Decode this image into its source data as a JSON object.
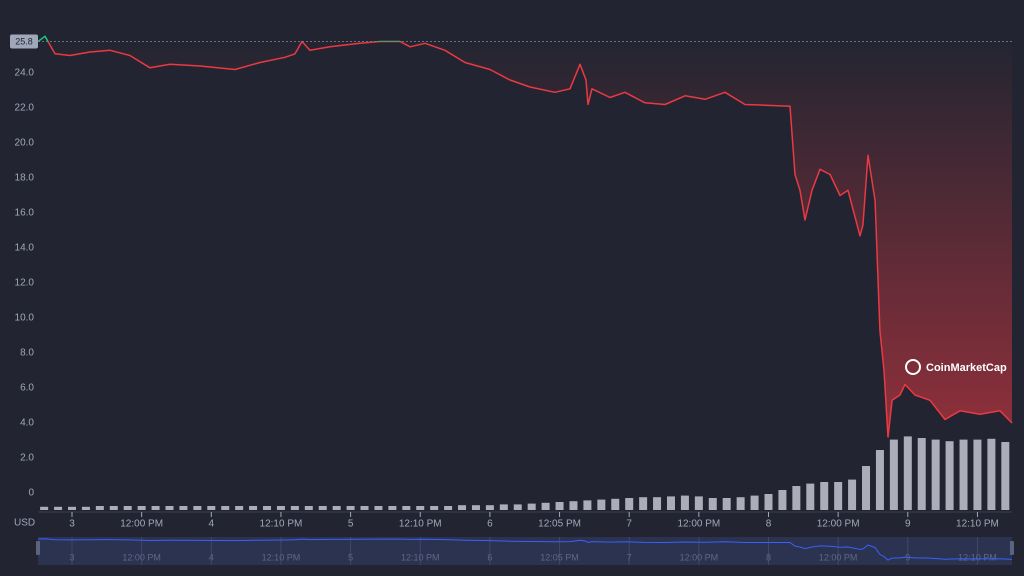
{
  "chart_data": {
    "type": "line",
    "currency_label": "USD",
    "watermark": "CoinMarketCap",
    "reference_price": 25.8,
    "ylim": [
      -1,
      27
    ],
    "yticks": [
      0,
      {
        "value": 2,
        "label": "2.0"
      },
      {
        "value": 4,
        "label": "4.0"
      },
      {
        "value": 6,
        "label": "6.0"
      },
      {
        "value": 8,
        "label": "8.0"
      },
      {
        "value": 10,
        "label": "10.0"
      },
      {
        "value": 12,
        "label": "12.0"
      },
      {
        "value": 14,
        "label": "14.0"
      },
      {
        "value": 16,
        "label": "16.0"
      },
      {
        "value": 18,
        "label": "18.0"
      },
      {
        "value": 20,
        "label": "20.0"
      },
      {
        "value": 22,
        "label": "22.0"
      },
      {
        "value": 24,
        "label": "24.0"
      }
    ],
    "xlim": [
      2.756,
      9.748
    ],
    "xticks": [
      3,
      {
        "value": 3.5,
        "label": "12:00 PM"
      },
      4,
      {
        "value": 4.5,
        "label": "12:10 PM"
      },
      5,
      {
        "value": 5.5,
        "label": "12:10 PM"
      },
      6,
      {
        "value": 6.5,
        "label": "12:05 PM"
      },
      7,
      {
        "value": 7.5,
        "label": "12:00 PM"
      },
      8,
      {
        "value": 8.5,
        "label": "12:00 PM"
      },
      9,
      {
        "value": 9.5,
        "label": "12:10 PM"
      }
    ],
    "price": {
      "color": "#ea3943",
      "up_color": "#16c784",
      "navigator_color": "#3861fb",
      "x": [
        2.756,
        2.806,
        2.842,
        2.878,
        2.986,
        3.129,
        3.273,
        3.416,
        3.56,
        3.704,
        3.919,
        4.17,
        4.35,
        4.529,
        4.601,
        4.651,
        4.708,
        4.852,
        5.067,
        5.211,
        5.355,
        5.427,
        5.534,
        5.678,
        5.821,
        6.001,
        6.144,
        6.288,
        6.467,
        6.575,
        6.647,
        6.69,
        6.704,
        6.733,
        6.862,
        6.97,
        7.113,
        7.257,
        7.401,
        7.545,
        7.688,
        7.831,
        8.154,
        8.19,
        8.226,
        8.262,
        8.312,
        8.37,
        8.442,
        8.513,
        8.571,
        8.657,
        8.678,
        8.714,
        8.765,
        8.8,
        8.829,
        8.858,
        8.887,
        8.944,
        8.98,
        9.052,
        9.159,
        9.267,
        9.375,
        9.518,
        9.662,
        9.748
      ],
      "values": [
        25.8,
        26.1,
        25.6,
        25.1,
        25.0,
        25.2,
        25.3,
        25.0,
        24.3,
        24.5,
        24.4,
        24.2,
        24.6,
        24.9,
        25.1,
        25.8,
        25.3,
        25.5,
        25.7,
        25.8,
        25.8,
        25.5,
        25.7,
        25.3,
        24.6,
        24.2,
        23.6,
        23.2,
        22.9,
        23.1,
        24.5,
        23.6,
        22.2,
        23.1,
        22.6,
        22.9,
        22.3,
        22.2,
        22.7,
        22.5,
        22.9,
        22.2,
        22.1,
        18.2,
        17.3,
        15.6,
        17.3,
        18.5,
        18.2,
        17.0,
        17.3,
        14.7,
        15.3,
        19.3,
        16.7,
        9.3,
        7.0,
        3.2,
        5.3,
        5.6,
        6.2,
        5.6,
        5.3,
        4.2,
        4.7,
        4.5,
        4.7,
        4.0
      ]
    },
    "volume": {
      "color": "#c3c6d0",
      "y2lim": [
        0,
        100
      ],
      "x": [
        2.8,
        2.9,
        3.0,
        3.1,
        3.2,
        3.3,
        3.4,
        3.5,
        3.6,
        3.7,
        3.8,
        3.9,
        4.0,
        4.1,
        4.2,
        4.3,
        4.4,
        4.5,
        4.6,
        4.7,
        4.8,
        4.9,
        5.0,
        5.1,
        5.2,
        5.3,
        5.4,
        5.5,
        5.6,
        5.7,
        5.8,
        5.9,
        6.0,
        6.1,
        6.2,
        6.3,
        6.4,
        6.5,
        6.6,
        6.7,
        6.8,
        6.9,
        7.0,
        7.1,
        7.2,
        7.3,
        7.4,
        7.5,
        7.6,
        7.7,
        7.8,
        7.9,
        8.0,
        8.1,
        8.2,
        8.3,
        8.4,
        8.5,
        8.6,
        8.7,
        8.8,
        8.9,
        9.0,
        9.1,
        9.2,
        9.3,
        9.4,
        9.5,
        9.6,
        9.7
      ],
      "values": [
        4,
        4,
        4,
        4,
        5,
        5,
        5,
        5,
        5,
        5,
        5,
        5,
        5,
        5,
        5,
        5,
        5,
        5,
        5,
        5,
        5,
        5,
        5,
        5,
        5,
        5,
        5,
        5,
        5,
        5,
        6,
        6,
        6,
        7,
        7,
        8,
        9,
        10,
        11,
        12,
        13,
        14,
        15,
        16,
        16,
        17,
        18,
        17,
        15,
        15,
        16,
        18,
        20,
        25,
        30,
        33,
        35,
        35,
        38,
        55,
        75,
        88,
        92,
        90,
        88,
        86,
        88,
        88,
        89,
        85
      ]
    }
  }
}
